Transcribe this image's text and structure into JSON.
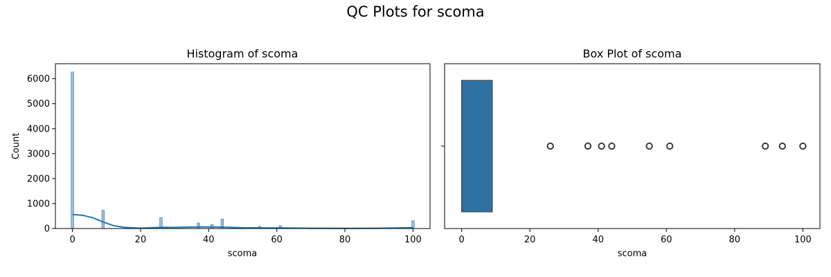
{
  "figure": {
    "suptitle": "QC Plots for scoma"
  },
  "chart_data": [
    {
      "type": "histogram",
      "title": "Histogram of scoma",
      "xlabel": "scoma",
      "ylabel": "Count",
      "xlim": [
        -5,
        105
      ],
      "ylim": [
        0,
        6600
      ],
      "xticks": [
        0,
        20,
        40,
        60,
        80,
        100
      ],
      "yticks": [
        0,
        1000,
        2000,
        3000,
        4000,
        5000,
        6000
      ],
      "bins": [
        {
          "x": 0,
          "count": 6270
        },
        {
          "x": 9,
          "count": 730
        },
        {
          "x": 26,
          "count": 430
        },
        {
          "x": 37,
          "count": 220
        },
        {
          "x": 41,
          "count": 160
        },
        {
          "x": 44,
          "count": 380
        },
        {
          "x": 55,
          "count": 90
        },
        {
          "x": 61,
          "count": 110
        },
        {
          "x": 89,
          "count": 20
        },
        {
          "x": 94,
          "count": 25
        },
        {
          "x": 100,
          "count": 310
        }
      ],
      "kde": {
        "x": [
          0,
          3,
          6,
          9,
          12,
          15,
          20,
          26,
          30,
          37,
          41,
          44,
          50,
          55,
          61,
          70,
          80,
          89,
          94,
          100
        ],
        "y": [
          560,
          530,
          430,
          260,
          120,
          50,
          15,
          50,
          45,
          60,
          60,
          55,
          30,
          25,
          25,
          10,
          5,
          10,
          20,
          35
        ]
      },
      "colors": {
        "bar": "#9ec1dc",
        "edge": "#4d86b4",
        "kde": "#1f77b4"
      },
      "grid": false
    },
    {
      "type": "box",
      "title": "Box Plot of scoma",
      "xlabel": "scoma",
      "ylabel": "",
      "xlim": [
        -5,
        105
      ],
      "xticks": [
        0,
        20,
        40,
        60,
        80,
        100
      ],
      "box": {
        "min": 0,
        "q1": 0,
        "median": 0,
        "q3": 9,
        "max": 9
      },
      "outliers": [
        26,
        37,
        41,
        44,
        55,
        61,
        89,
        94,
        100
      ],
      "colors": {
        "box": "#2e71a3",
        "edge": "#3c3c3c"
      },
      "grid": false
    }
  ]
}
